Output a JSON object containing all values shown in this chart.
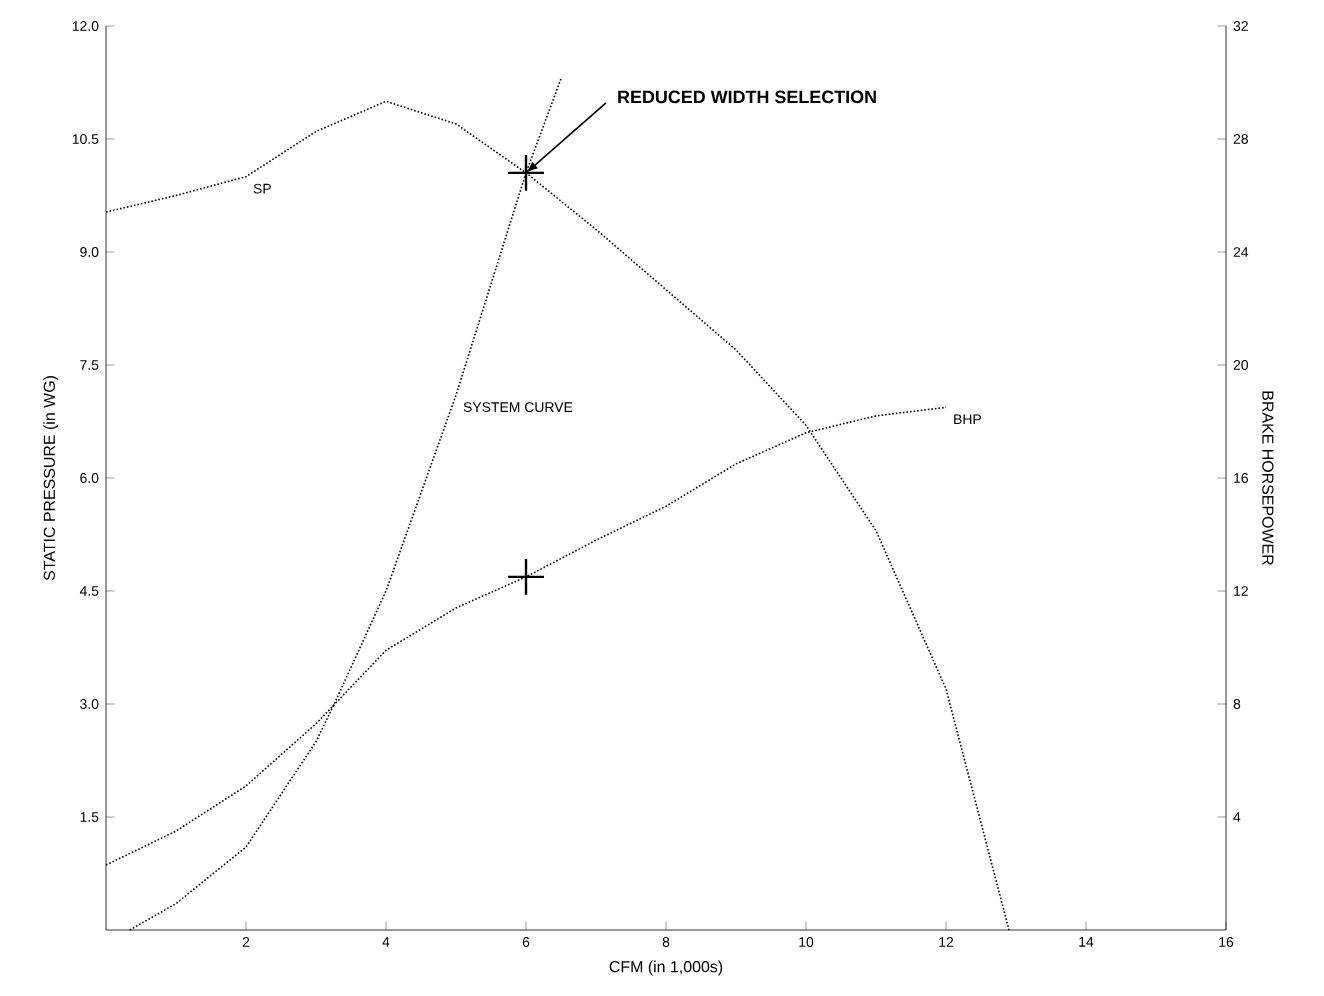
{
  "chart_data": {
    "type": "line",
    "xlabel": "CFM (in 1,000s)",
    "ylabel": "STATIC PRESSURE (in WG)",
    "y2label": "BRAKE HORSEPOWER",
    "xlim": [
      0,
      16
    ],
    "xticks": [
      2,
      4,
      6,
      8,
      10,
      12,
      14,
      16
    ],
    "ylim": [
      0,
      12
    ],
    "yticks": [
      1.5,
      {
        "value": 3,
        "label": "3.0"
      },
      4.5,
      {
        "value": 6,
        "label": "6.0"
      },
      7.5,
      {
        "value": 9,
        "label": "9.0"
      },
      10.5,
      {
        "value": 12,
        "label": "12.0"
      }
    ],
    "y2lim": [
      0,
      32
    ],
    "y2ticks": [
      4,
      8,
      12,
      16,
      20,
      24,
      28,
      32
    ],
    "grid": false,
    "line_style": "dotted",
    "marker": "none",
    "series": [
      {
        "name": "SP",
        "color": "#000000",
        "x": [
          0,
          1,
          2,
          3,
          4,
          5,
          6,
          7,
          8,
          9,
          10,
          11,
          12,
          12.9
        ],
        "values": [
          9.53,
          9.75,
          10.0,
          10.6,
          11.0,
          10.7,
          10.05,
          9.3,
          8.5,
          7.7,
          6.7,
          5.3,
          3.2,
          0
        ]
      },
      {
        "name": "SYSTEM CURVE",
        "color": "#000000",
        "x": [
          0.34,
          1,
          2,
          3,
          3.26,
          4,
          5,
          6,
          6.5
        ],
        "values": [
          0,
          0.35,
          1.1,
          2.5,
          3.0,
          4.5,
          7.1,
          10.05,
          11.3
        ]
      },
      {
        "name": "BHP",
        "color": "#000000",
        "axis": "y2",
        "x": [
          0,
          1,
          2,
          3,
          4,
          5,
          6,
          7,
          8,
          9,
          10,
          11,
          12
        ],
        "values": [
          2.3,
          3.5,
          5.1,
          7.3,
          9.9,
          11.4,
          12.5,
          13.8,
          15.0,
          16.5,
          17.6,
          18.2,
          18.5
        ]
      },
      {
        "type": "scatter",
        "marker": "cross",
        "color": "#000000",
        "x": [
          6
        ],
        "values": [
          10.05
        ]
      },
      {
        "type": "scatter",
        "marker": "cross",
        "color": "#000000",
        "axis": "y2",
        "x": [
          6
        ],
        "values": [
          12.5
        ]
      }
    ],
    "annotations": [
      {
        "text": "REDUCED WIDTH SELECTION",
        "x": 6,
        "y": 10.05
      }
    ]
  }
}
